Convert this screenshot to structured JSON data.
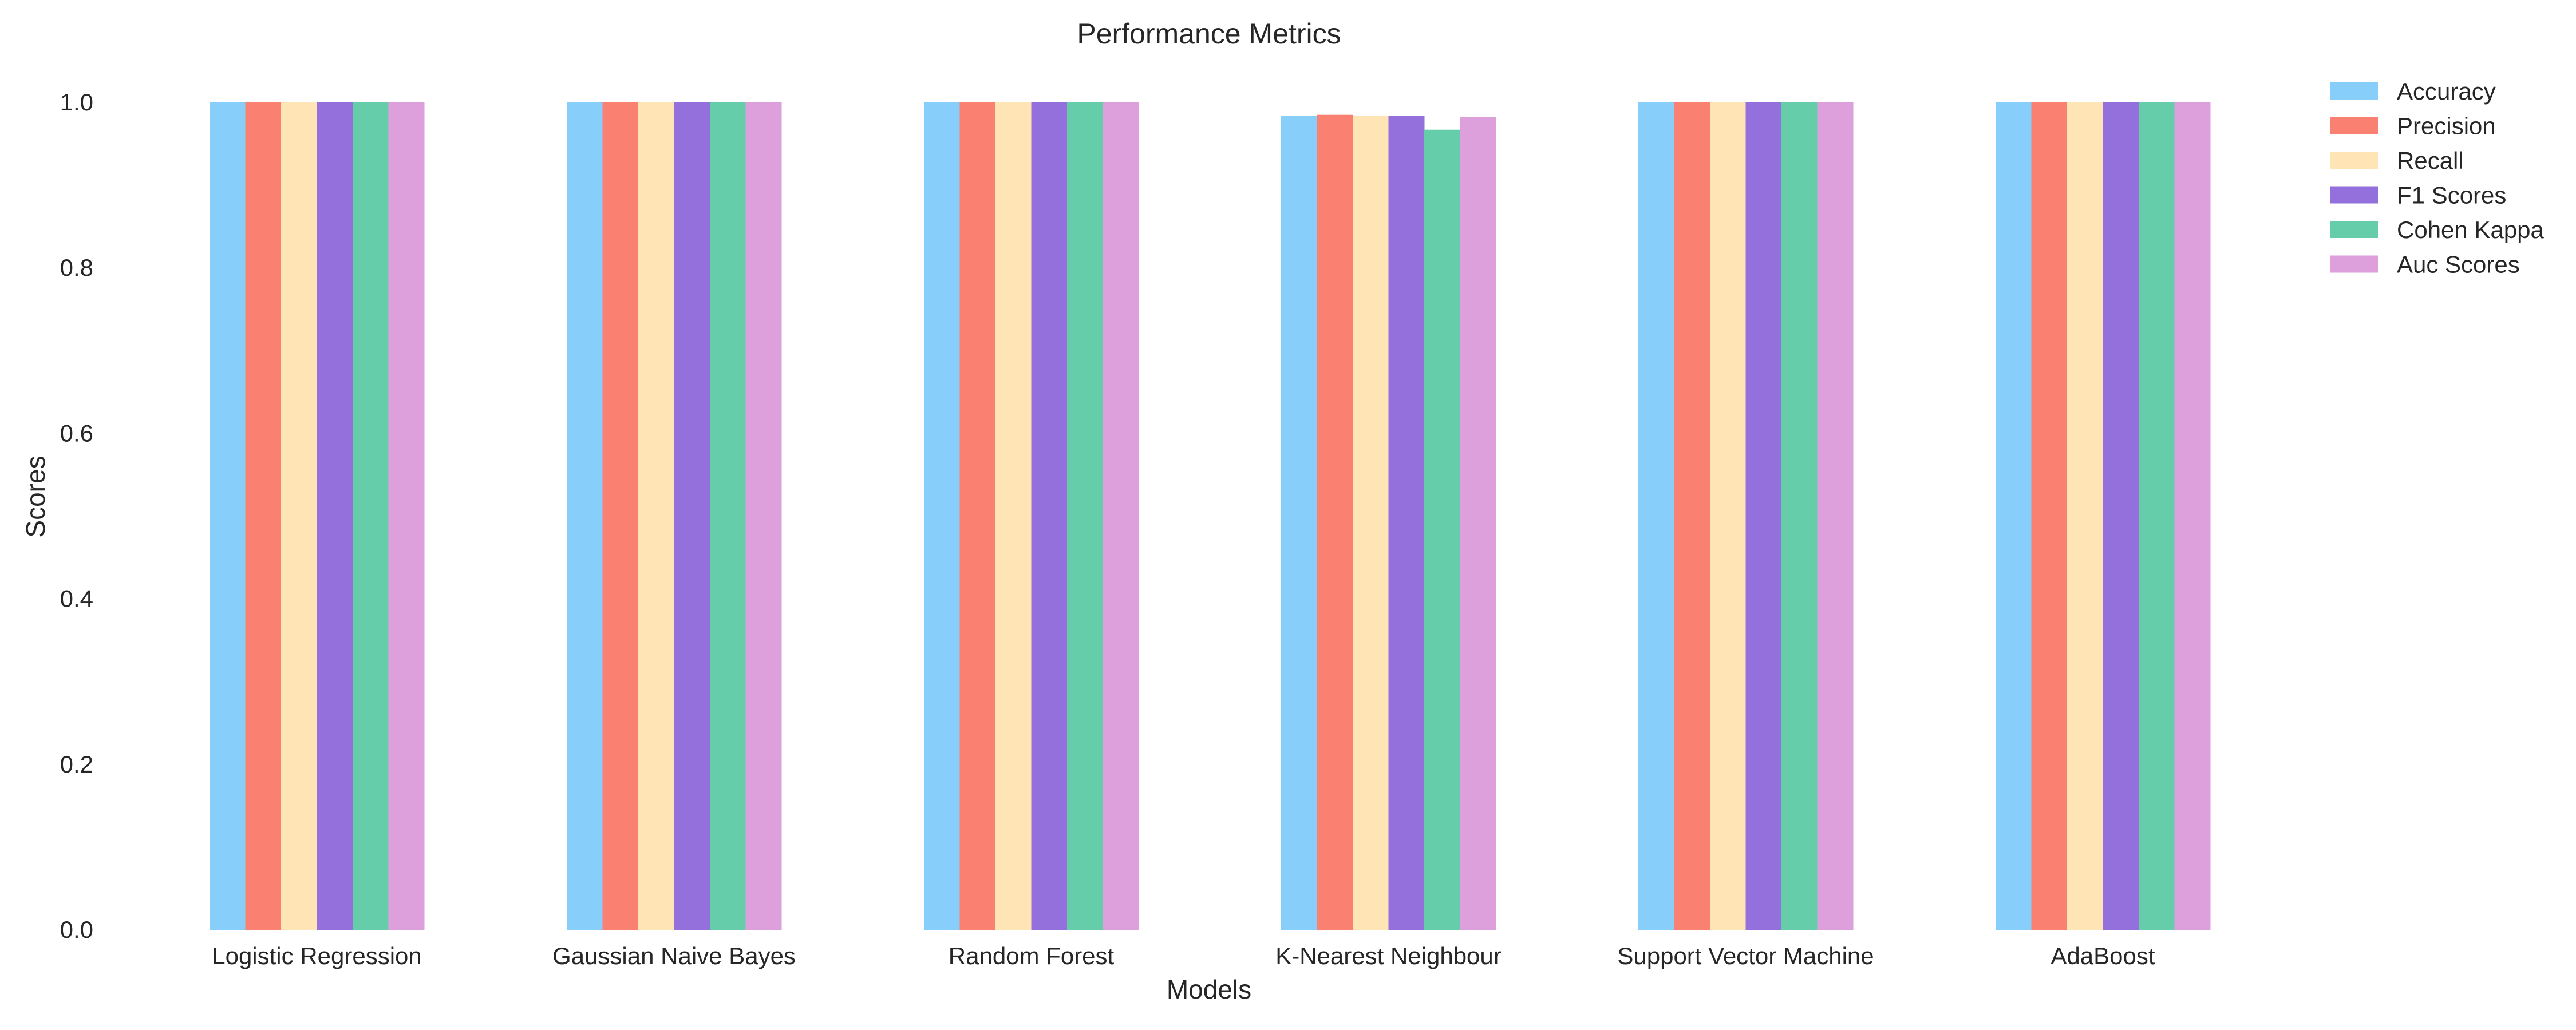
{
  "chart_data": {
    "type": "bar",
    "title": "Performance Metrics",
    "xlabel": "Models",
    "ylabel": "Scores",
    "ylim": [
      0,
      1.0
    ],
    "yticks": [
      "0.0",
      "0.2",
      "0.4",
      "0.6",
      "0.8",
      "1.0"
    ],
    "grid": false,
    "legend_position": "top-right",
    "categories": [
      "Logistic Regression",
      "Gaussian Naive Bayes",
      "Random Forest",
      "K-Nearest Neighbour",
      "Support Vector Machine",
      "AdaBoost"
    ],
    "series": [
      {
        "name": "Accuracy",
        "color": "#87CEFA",
        "values": [
          1.0,
          1.0,
          1.0,
          0.984,
          1.0,
          1.0
        ]
      },
      {
        "name": "Precision",
        "color": "#FA8072",
        "values": [
          1.0,
          1.0,
          1.0,
          0.985,
          1.0,
          1.0
        ]
      },
      {
        "name": "Recall",
        "color": "#FFE4B5",
        "values": [
          1.0,
          1.0,
          1.0,
          0.984,
          1.0,
          1.0
        ]
      },
      {
        "name": "F1 Scores",
        "color": "#9370DB",
        "values": [
          1.0,
          1.0,
          1.0,
          0.984,
          1.0,
          1.0
        ]
      },
      {
        "name": "Cohen Kappa",
        "color": "#66CDAA",
        "values": [
          1.0,
          1.0,
          1.0,
          0.967,
          1.0,
          1.0
        ]
      },
      {
        "name": "Auc Scores",
        "color": "#DDA0DD",
        "values": [
          1.0,
          1.0,
          1.0,
          0.982,
          1.0,
          1.0
        ]
      }
    ]
  }
}
